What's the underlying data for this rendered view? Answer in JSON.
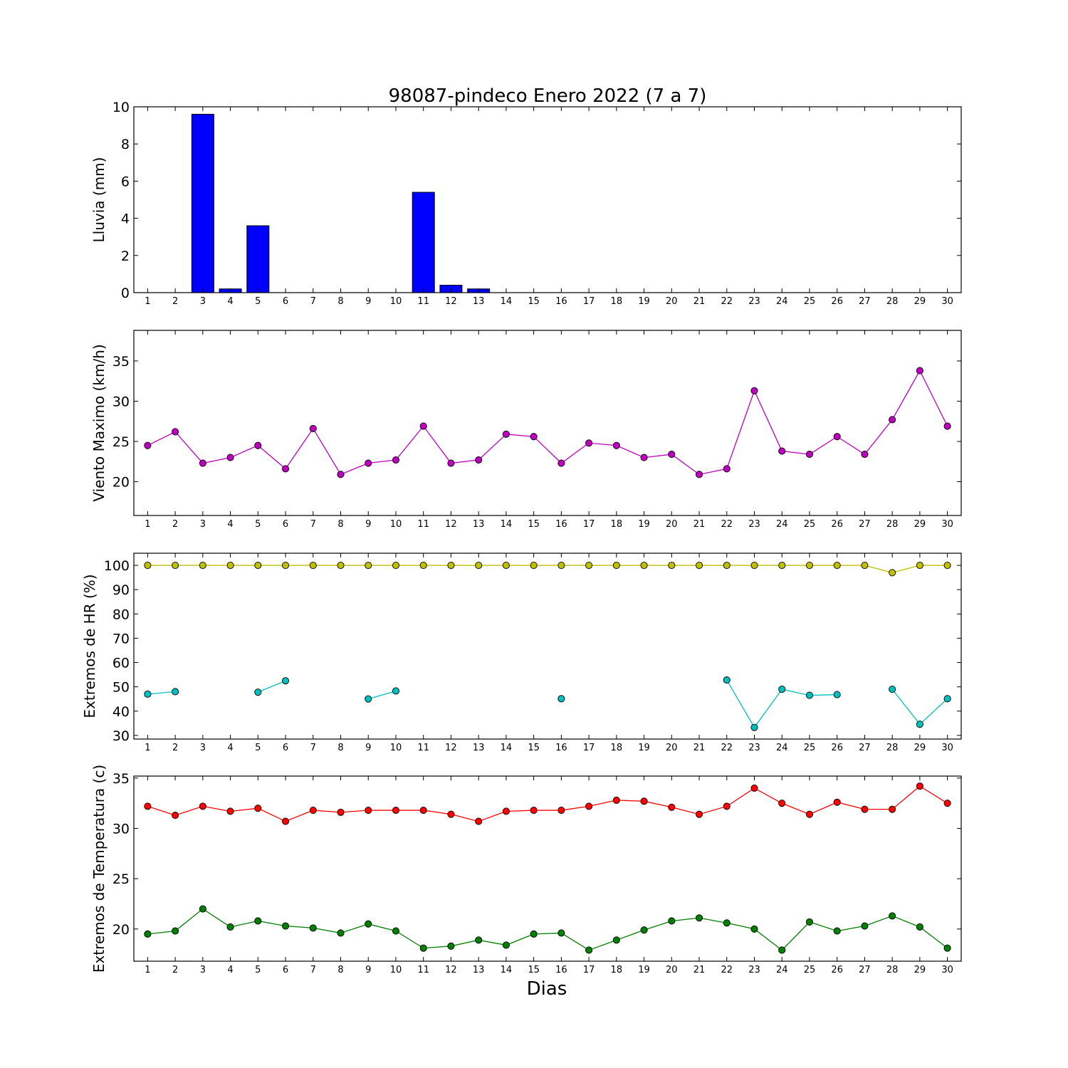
{
  "title": "98087-pindeco Enero 2022  (7 a 7)",
  "xlabel": "Dias",
  "chart_data": [
    {
      "type": "bar",
      "ylabel": "Lluvia (mm)",
      "ylim": [
        0,
        10
      ],
      "yticks": [
        0,
        2,
        4,
        6,
        8,
        10
      ],
      "x": [
        1,
        2,
        3,
        4,
        5,
        6,
        7,
        8,
        9,
        10,
        11,
        12,
        13,
        14,
        15,
        16,
        17,
        18,
        19,
        20,
        21,
        22,
        23,
        24,
        25,
        26,
        27,
        28,
        29,
        30
      ],
      "xlim": [
        0.5,
        30.5
      ],
      "series": [
        {
          "color": "#0000ff",
          "values": [
            0,
            0,
            9.6,
            0.2,
            3.6,
            0,
            0,
            0,
            0,
            0,
            5.4,
            0.4,
            0.2,
            0,
            0,
            0,
            0,
            0,
            0,
            0,
            0,
            0,
            0,
            0,
            0,
            0,
            0,
            0,
            0,
            0
          ]
        }
      ]
    },
    {
      "type": "line",
      "ylabel": "Viento Maximo (km/h)",
      "ylim": [
        15.8,
        38.8
      ],
      "yticks": [
        20,
        25,
        30,
        35
      ],
      "x": [
        1,
        2,
        3,
        4,
        5,
        6,
        7,
        8,
        9,
        10,
        11,
        12,
        13,
        14,
        15,
        16,
        17,
        18,
        19,
        20,
        21,
        22,
        23,
        24,
        25,
        26,
        27,
        28,
        29,
        30
      ],
      "xlim": [
        0.5,
        30.5
      ],
      "series": [
        {
          "color": "#bf00bf",
          "values": [
            24.5,
            26.2,
            22.3,
            23.0,
            24.5,
            21.6,
            26.6,
            20.9,
            22.3,
            22.7,
            26.9,
            22.3,
            22.7,
            25.9,
            25.6,
            22.3,
            24.8,
            24.5,
            23.0,
            23.4,
            20.9,
            21.6,
            31.3,
            23.8,
            23.4,
            25.6,
            23.4,
            27.7,
            33.8,
            26.9
          ]
        }
      ]
    },
    {
      "type": "line",
      "ylabel": "Extremos de HR (%)",
      "ylim": [
        28.5,
        105
      ],
      "yticks": [
        30,
        40,
        50,
        60,
        70,
        80,
        90,
        100
      ],
      "x": [
        1,
        2,
        3,
        4,
        5,
        6,
        7,
        8,
        9,
        10,
        11,
        12,
        13,
        14,
        15,
        16,
        17,
        18,
        19,
        20,
        21,
        22,
        23,
        24,
        25,
        26,
        27,
        28,
        29,
        30
      ],
      "xlim": [
        0.5,
        30.5
      ],
      "series": [
        {
          "color": "#bfbf00",
          "values": [
            100,
            100,
            100,
            100,
            100,
            100,
            100,
            100,
            100,
            100,
            100,
            100,
            100,
            100,
            100,
            100,
            100,
            100,
            100,
            100,
            100,
            100,
            100,
            100,
            100,
            100,
            100,
            97,
            100,
            100
          ]
        },
        {
          "color": "#00bfbf",
          "values": [
            47,
            48,
            null,
            null,
            47.8,
            52.5,
            null,
            null,
            45,
            48.3,
            null,
            null,
            null,
            null,
            null,
            45.1,
            null,
            null,
            null,
            null,
            null,
            52.8,
            33.3,
            49,
            46.5,
            46.8,
            null,
            49,
            34.6,
            45.1
          ]
        }
      ]
    },
    {
      "type": "line",
      "ylabel": "Extremos de Temperatura (c)",
      "ylim": [
        16.8,
        35.2
      ],
      "yticks": [
        20,
        25,
        30,
        35
      ],
      "x": [
        1,
        2,
        3,
        4,
        5,
        6,
        7,
        8,
        9,
        10,
        11,
        12,
        13,
        14,
        15,
        16,
        17,
        18,
        19,
        20,
        21,
        22,
        23,
        24,
        25,
        26,
        27,
        28,
        29,
        30
      ],
      "xlim": [
        0.5,
        30.5
      ],
      "series": [
        {
          "color": "#ff0000",
          "values": [
            32.2,
            31.3,
            32.2,
            31.7,
            32.0,
            30.7,
            31.8,
            31.6,
            31.8,
            31.8,
            31.8,
            31.4,
            30.7,
            31.7,
            31.8,
            31.8,
            32.2,
            32.8,
            32.7,
            32.1,
            31.4,
            32.2,
            34.0,
            32.5,
            31.4,
            32.6,
            31.9,
            31.9,
            34.2,
            32.5
          ]
        },
        {
          "color": "#007f00",
          "values": [
            19.5,
            19.8,
            22.0,
            20.2,
            20.8,
            20.3,
            20.1,
            19.6,
            20.5,
            19.8,
            18.1,
            18.3,
            18.9,
            18.4,
            19.5,
            19.6,
            17.9,
            18.9,
            19.9,
            20.8,
            21.1,
            20.6,
            20.0,
            17.9,
            20.7,
            19.8,
            20.3,
            21.3,
            20.2,
            18.1
          ]
        }
      ]
    }
  ]
}
